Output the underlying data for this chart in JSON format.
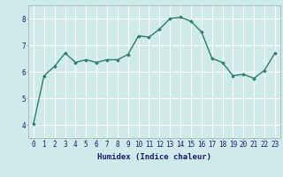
{
  "x": [
    0,
    1,
    2,
    3,
    4,
    5,
    6,
    7,
    8,
    9,
    10,
    11,
    12,
    13,
    14,
    15,
    16,
    17,
    18,
    19,
    20,
    21,
    22,
    23
  ],
  "y": [
    4.05,
    5.85,
    6.2,
    6.7,
    6.35,
    6.45,
    6.35,
    6.45,
    6.45,
    6.65,
    7.35,
    7.3,
    7.6,
    8.0,
    8.05,
    7.9,
    7.5,
    6.5,
    6.35,
    5.85,
    5.9,
    5.75,
    6.05,
    6.7
  ],
  "line_color": "#2e7d6e",
  "marker": "D",
  "marker_size": 1.8,
  "line_width": 1.0,
  "bg_color": "#ceeaea",
  "grid_color": "#ffffff",
  "xlabel": "Humidex (Indice chaleur)",
  "xlabel_fontsize": 6.5,
  "xlabel_color": "#1a1a6e",
  "ylim": [
    3.5,
    8.5
  ],
  "xlim": [
    -0.5,
    23.5
  ],
  "yticks": [
    4,
    5,
    6,
    7,
    8
  ],
  "xticks": [
    0,
    1,
    2,
    3,
    4,
    5,
    6,
    7,
    8,
    9,
    10,
    11,
    12,
    13,
    14,
    15,
    16,
    17,
    18,
    19,
    20,
    21,
    22,
    23
  ],
  "tick_fontsize": 5.5,
  "tick_color": "#1a1a6e",
  "spine_color": "#aaaaaa"
}
